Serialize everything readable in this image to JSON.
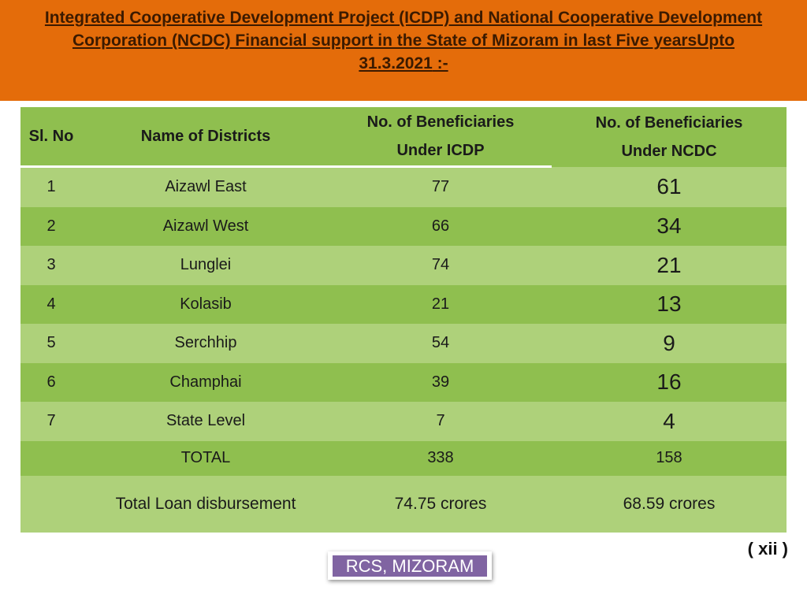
{
  "header": {
    "title_line1": "Integrated Cooperative Development Project (ICDP) and National Cooperative Development",
    "title_line2": "Corporation (NCDC) Financial support in the State of Mizoram in last Five yearsUpto",
    "title_line3": "31.3.2021",
    "title_suffix": " :-"
  },
  "table": {
    "columns": {
      "sl_no": "Sl. No",
      "district": "Name  of  Districts",
      "icdp_line1": "No. of  Beneficiaries",
      "icdp_line2": "Under ICDP",
      "ncdc_line1": "No. of  Beneficiaries",
      "ncdc_line2": "Under NCDC"
    },
    "rows": [
      {
        "sl": "1",
        "district": "Aizawl East",
        "icdp": "77",
        "ncdc": "61"
      },
      {
        "sl": "2",
        "district": "Aizawl West",
        "icdp": "66",
        "ncdc": "34"
      },
      {
        "sl": "3",
        "district": "Lunglei",
        "icdp": "74",
        "ncdc": "21"
      },
      {
        "sl": "4",
        "district": "Kolasib",
        "icdp": "21",
        "ncdc": "13"
      },
      {
        "sl": "5",
        "district": "Serchhip",
        "icdp": "54",
        "ncdc": "9"
      },
      {
        "sl": "6",
        "district": "Champhai",
        "icdp": "39",
        "ncdc": "16"
      },
      {
        "sl": "7",
        "district": "State Level",
        "icdp": "7",
        "ncdc": "4"
      }
    ],
    "total": {
      "label": "TOTAL",
      "icdp": "338",
      "ncdc": "158"
    },
    "loan": {
      "label": "Total  Loan disbursement",
      "icdp": "74.75 crores",
      "ncdc": "68.59 crores"
    }
  },
  "page_number": "( xii )",
  "footer": {
    "badge": "RCS, MIZORAM"
  },
  "colors": {
    "header_bg": "#e46c0a",
    "row_dark": "#8fbf4f",
    "row_light": "#aed17a",
    "badge_bg": "#8064a2"
  }
}
